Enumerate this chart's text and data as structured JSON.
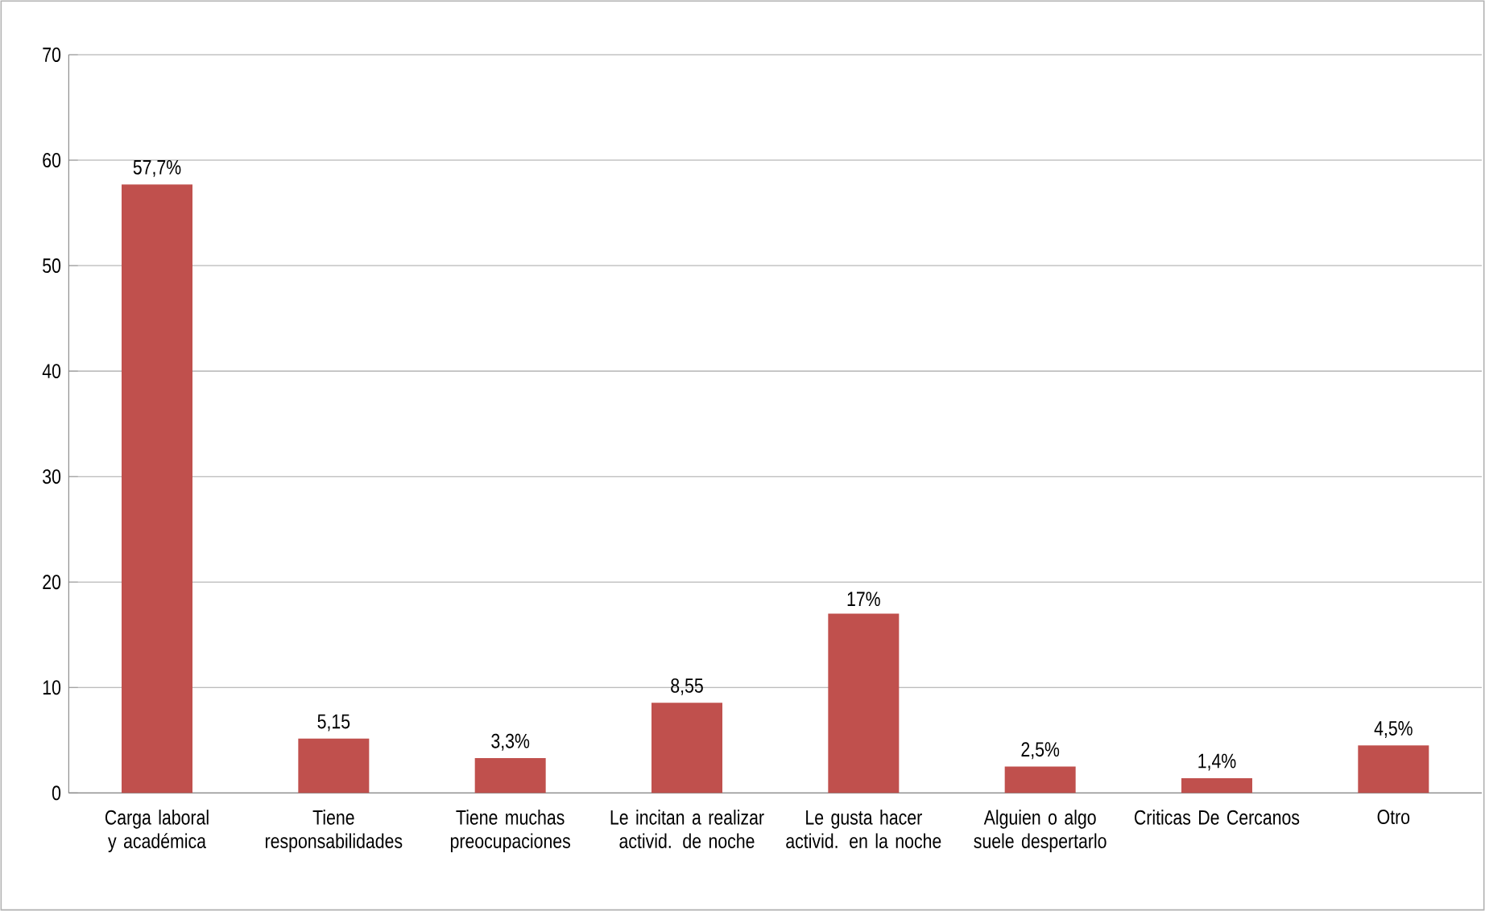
{
  "chart_data": {
    "type": "bar",
    "categories": [
      "Carga laboral y académica",
      "Tiene responsabilidades",
      "Tiene muchas preocupaciones",
      "Le incitan a realizar activid. de noche",
      "Le gusta hacer activid. en la noche",
      "Alguien o algo suele despertarlo",
      "Criticas De Cercanos",
      "Otro"
    ],
    "values": [
      57.7,
      5.15,
      3.3,
      8.55,
      17,
      2.5,
      1.4,
      4.5
    ],
    "value_labels": [
      "57,7%",
      "5,15",
      "3,3%",
      "8,55",
      "17%",
      "2,5%",
      "1,4%",
      "4,5%"
    ],
    "color": "#c0504d",
    "ylim": [
      0,
      70
    ],
    "yticks": [
      0,
      10,
      20,
      30,
      40,
      50,
      60,
      70
    ],
    "grid": "y"
  }
}
